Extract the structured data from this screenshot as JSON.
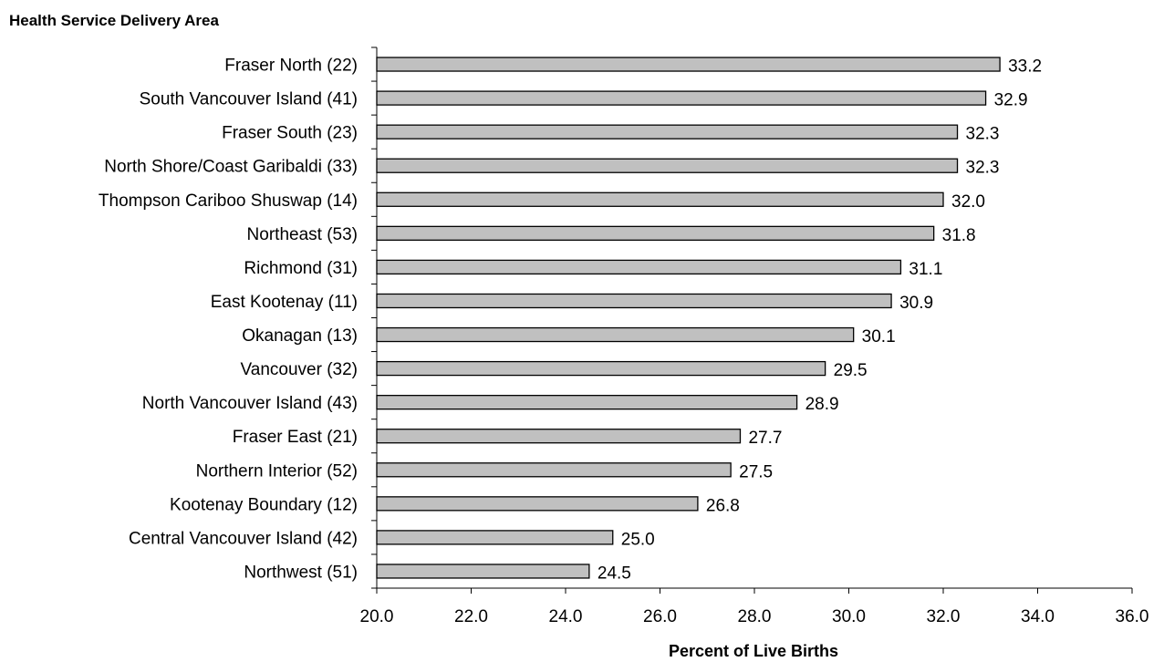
{
  "chart_data": {
    "type": "bar",
    "orientation": "horizontal",
    "ylabel": "Health Service Delivery Area",
    "xlabel": "Percent of Live Births",
    "categories": [
      "Fraser North (22)",
      "South Vancouver Island (41)",
      "Fraser South (23)",
      "North Shore/Coast Garibaldi (33)",
      "Thompson Cariboo Shuswap (14)",
      "Northeast (53)",
      "Richmond (31)",
      "East Kootenay (11)",
      "Okanagan (13)",
      "Vancouver (32)",
      "North Vancouver Island (43)",
      "Fraser East (21)",
      "Northern Interior (52)",
      "Kootenay Boundary (12)",
      "Central Vancouver Island (42)",
      "Northwest (51)"
    ],
    "values": [
      33.2,
      32.9,
      32.3,
      32.3,
      32.0,
      31.8,
      31.1,
      30.9,
      30.1,
      29.5,
      28.9,
      27.7,
      27.5,
      26.8,
      25.0,
      24.5
    ],
    "value_labels": [
      "33.2",
      "32.9",
      "32.3",
      "32.3",
      "32.0",
      "31.8",
      "31.1",
      "30.9",
      "30.1",
      "29.5",
      "28.9",
      "27.7",
      "27.5",
      "26.8",
      "25.0",
      "24.5"
    ],
    "xlim": [
      20.0,
      36.0
    ],
    "xticks": [
      20.0,
      22.0,
      24.0,
      26.0,
      28.0,
      30.0,
      32.0,
      34.0,
      36.0
    ],
    "xtick_labels": [
      "20.0",
      "22.0",
      "24.0",
      "26.0",
      "28.0",
      "30.0",
      "32.0",
      "34.0",
      "36.0"
    ],
    "grid": false,
    "legend": "none",
    "bar_color": "#c0c0c0",
    "bar_edge_color": "#000000"
  }
}
